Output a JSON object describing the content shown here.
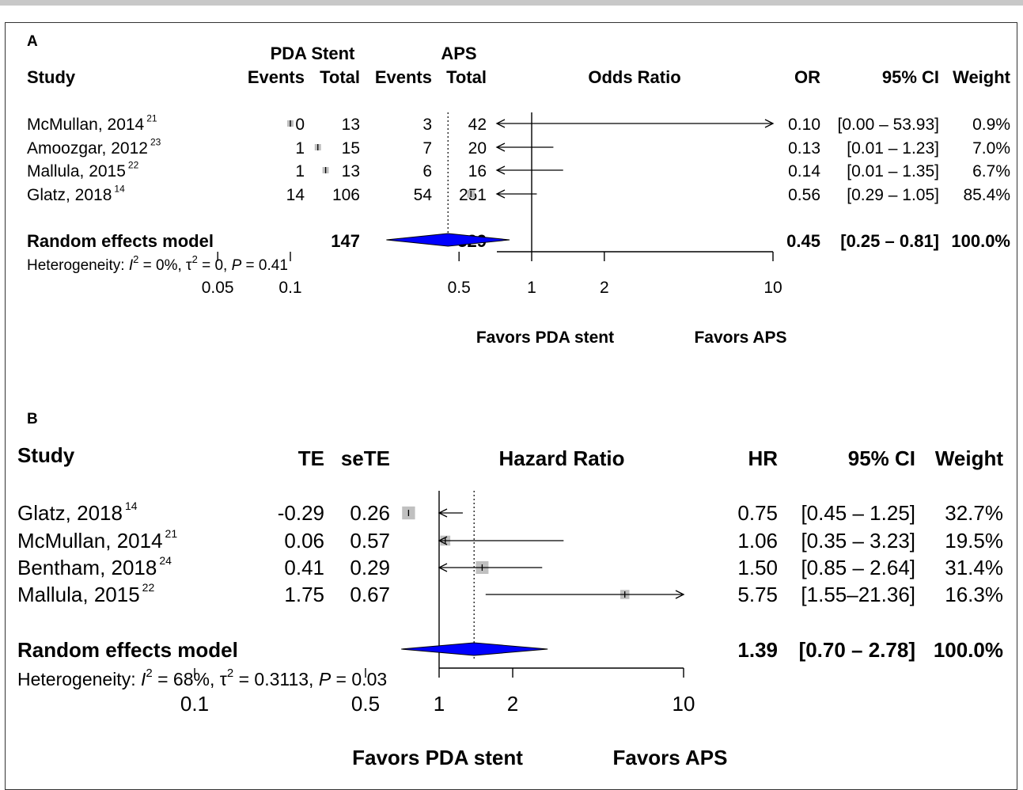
{
  "colors": {
    "box": "#c0c0c0",
    "diamond": "#0000ff",
    "line": "#000000",
    "frame": "#333333",
    "topbar": "#c8c8c8"
  },
  "chart_data": [
    {
      "type": "forest",
      "panel_label": "A",
      "measure": "Odds Ratio",
      "headers": {
        "study": "Study",
        "group1": "PDA Stent",
        "group2": "APS",
        "events": "Events",
        "total": "Total",
        "effect": "OR",
        "ci": "95% CI",
        "weight": "Weight"
      },
      "studies": [
        {
          "name": "McMullan, 2014",
          "ref": "21",
          "events1": "0",
          "total1": "13",
          "events2": "3",
          "total2": "42",
          "est": 0.1,
          "lo": 0.0,
          "hi": 53.93,
          "weight": 0.9,
          "effect_text": "0.10",
          "ci_text": "[0.00 – 53.93]",
          "weight_text": "0.9%"
        },
        {
          "name": "Amoozgar, 2012",
          "ref": "23",
          "events1": "1",
          "total1": "15",
          "events2": "7",
          "total2": "20",
          "est": 0.13,
          "lo": 0.01,
          "hi": 1.23,
          "weight": 7.0,
          "effect_text": "0.13",
          "ci_text": "[0.01 – 1.23]",
          "weight_text": "7.0%"
        },
        {
          "name": "Mallula, 2015",
          "ref": "22",
          "events1": "1",
          "total1": "13",
          "events2": "6",
          "total2": "16",
          "est": 0.14,
          "lo": 0.01,
          "hi": 1.35,
          "weight": 6.7,
          "effect_text": "0.14",
          "ci_text": "[0.01 – 1.35]",
          "weight_text": "6.7%"
        },
        {
          "name": "Glatz, 2018",
          "ref": "14",
          "events1": "14",
          "total1": "106",
          "events2": "54",
          "total2": "251",
          "est": 0.56,
          "lo": 0.29,
          "hi": 1.05,
          "weight": 85.4,
          "effect_text": "0.56",
          "ci_text": "[0.29 – 1.05]",
          "weight_text": "85.4%"
        }
      ],
      "pooled": {
        "name": "Random effects model",
        "total1": "147",
        "total2": "329",
        "est": 0.45,
        "lo": 0.25,
        "hi": 0.81,
        "effect_text": "0.45",
        "ci_text": "[0.25 – 0.81]",
        "weight_text": "100.0%"
      },
      "heterogeneity": {
        "prefix": "Heterogeneity: ",
        "I2_text": " = 0%, ",
        "tau2_text": " = 0, ",
        "p_text": " = 0.41"
      },
      "axis": {
        "scale": "log",
        "xlim": [
          0.05,
          10
        ],
        "ticks": [
          0.05,
          0.1,
          0.5,
          1,
          2,
          10
        ],
        "tick_labels": [
          "0.05",
          "0.1",
          "0.5",
          "1",
          "2",
          "10"
        ]
      },
      "favors": {
        "left": "Favors PDA stent",
        "right": "Favors APS"
      }
    },
    {
      "type": "forest",
      "panel_label": "B",
      "measure": "Hazard Ratio",
      "headers": {
        "study": "Study",
        "te": "TE",
        "sete": "seTE",
        "effect": "HR",
        "ci": "95% CI",
        "weight": "Weight"
      },
      "studies": [
        {
          "name": "Glatz, 2018",
          "ref": "14",
          "te": "-0.29",
          "sete": "0.26",
          "est": 0.75,
          "lo": 0.45,
          "hi": 1.25,
          "weight": 32.7,
          "effect_text": "0.75",
          "ci_text": "[0.45 – 1.25]",
          "weight_text": "32.7%"
        },
        {
          "name": "McMullan, 2014",
          "ref": "21",
          "te": "0.06",
          "sete": "0.57",
          "est": 1.06,
          "lo": 0.35,
          "hi": 3.23,
          "weight": 19.5,
          "effect_text": "1.06",
          "ci_text": "[0.35 – 3.23]",
          "weight_text": "19.5%"
        },
        {
          "name": "Bentham, 2018",
          "ref": "24",
          "te": "0.41",
          "sete": "0.29",
          "est": 1.5,
          "lo": 0.85,
          "hi": 2.64,
          "weight": 31.4,
          "effect_text": "1.50",
          "ci_text": "[0.85 – 2.64]",
          "weight_text": "31.4%"
        },
        {
          "name": "Mallula, 2015",
          "ref": "22",
          "te": "1.75",
          "sete": "0.67",
          "est": 5.75,
          "lo": 1.55,
          "hi": 21.36,
          "weight": 16.3,
          "effect_text": "5.75",
          "ci_text": "[1.55–21.36]",
          "weight_text": "16.3%"
        }
      ],
      "pooled": {
        "name": "Random effects model",
        "est": 1.39,
        "lo": 0.7,
        "hi": 2.78,
        "effect_text": "1.39",
        "ci_text": "[0.70 – 2.78]",
        "weight_text": "100.0%"
      },
      "heterogeneity": {
        "prefix": "Heterogeneity: ",
        "I2_text": " = 68%, ",
        "tau2_text": " = 0.3113, ",
        "p_text": " = 0.03"
      },
      "axis": {
        "scale": "log",
        "xlim": [
          0.1,
          10
        ],
        "ticks": [
          0.1,
          0.5,
          1,
          2,
          10
        ],
        "tick_labels": [
          "0.1",
          "0.5",
          "1",
          "2",
          "10"
        ]
      },
      "favors": {
        "left": "Favors PDA stent",
        "right": "Favors APS"
      }
    }
  ]
}
